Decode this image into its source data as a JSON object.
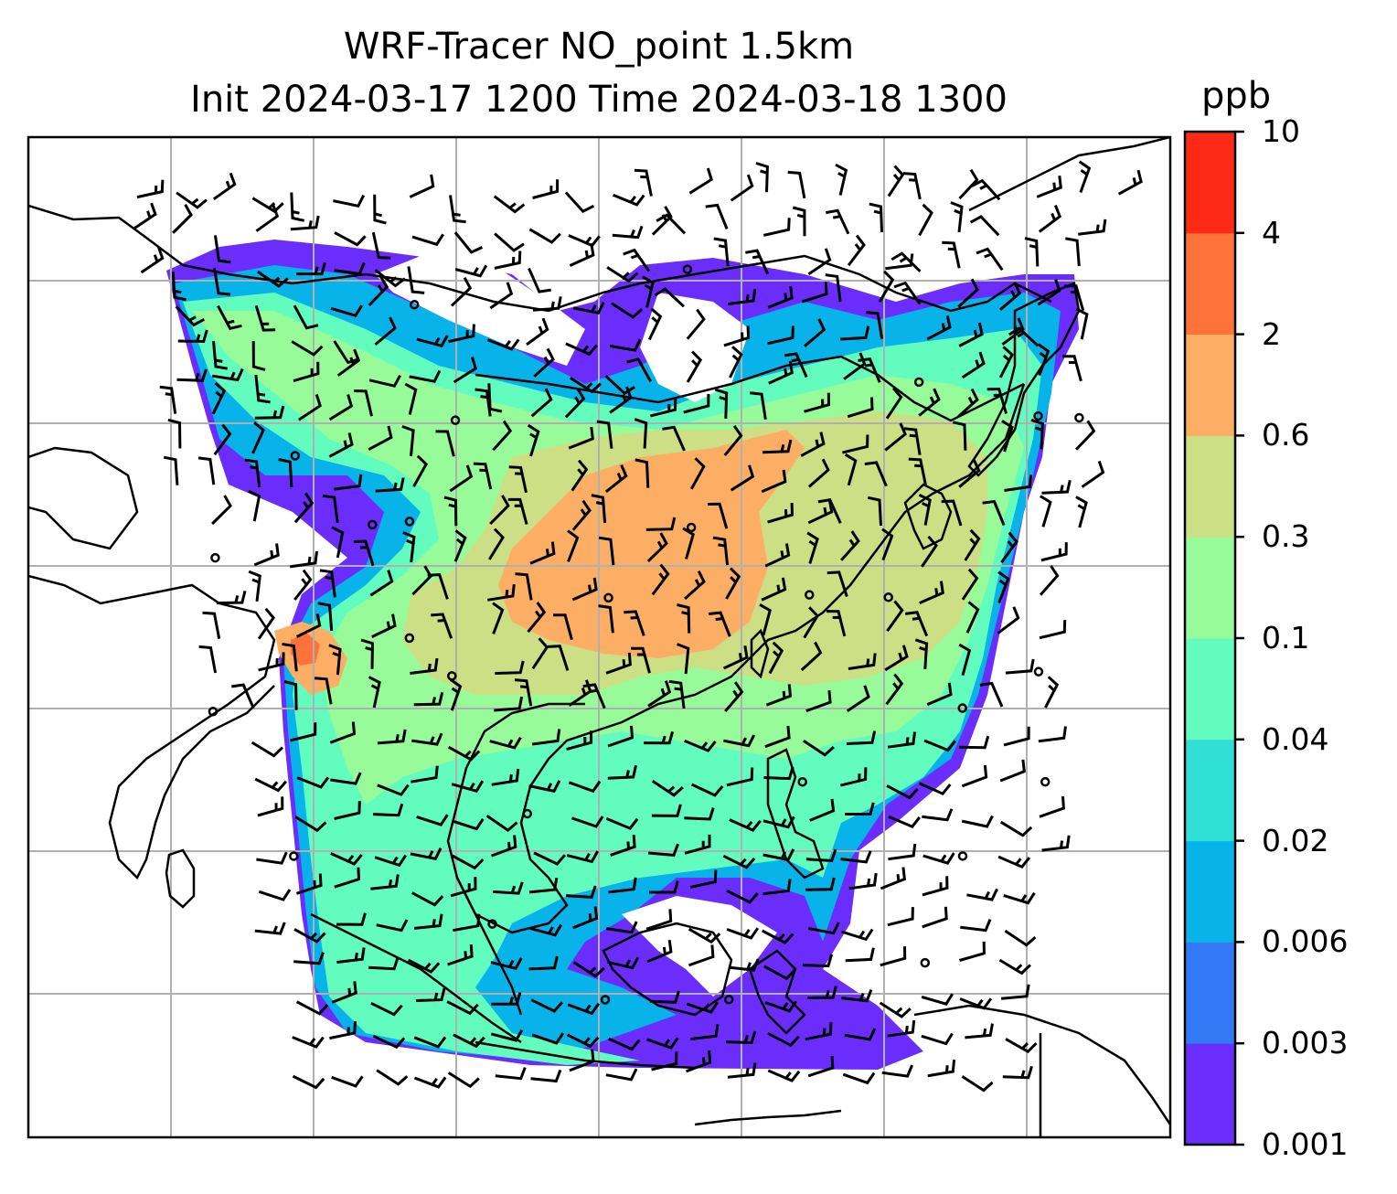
{
  "title": {
    "line1": "WRF-Tracer NO_point 1.5km",
    "line2": "Init 2024-03-17 1200 Time 2024-03-18 1300"
  },
  "colorbar": {
    "unit": "ppb",
    "ticks": [
      "0.001",
      "0.003",
      "0.006",
      "0.02",
      "0.04",
      "0.1",
      "0.3",
      "0.6",
      "2",
      "4",
      "10"
    ],
    "colors": [
      "#6a2dfb",
      "#3378f4",
      "#07b3e8",
      "#30dfd6",
      "#63fcbf",
      "#98fb99",
      "#ccdf84",
      "#fbae64",
      "#ff723a",
      "#ff2a16"
    ]
  },
  "map": {
    "coastline_color": "#000000",
    "grid_color": "#b0b0b0",
    "shows_wind_barbs": true
  }
}
